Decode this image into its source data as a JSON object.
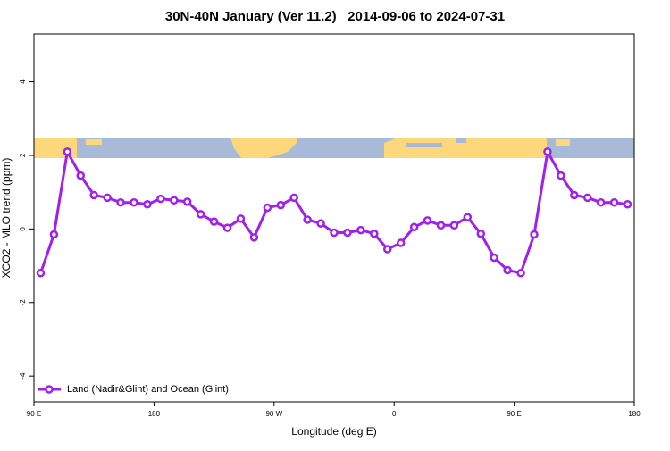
{
  "chart_data": {
    "type": "line",
    "title": "30N-40N January (Ver 11.2)   2014-09-06 to 2024-07-31",
    "x_label": "Longitude (deg E)",
    "y_label": "XCO2 - MLO trend (ppm)",
    "x": [
      95,
      105,
      115,
      125,
      135,
      145,
      155,
      165,
      175,
      185,
      195,
      205,
      215,
      225,
      235,
      245,
      255,
      265,
      275,
      285,
      295,
      305,
      315,
      325,
      335,
      345,
      355,
      365,
      375,
      385,
      395,
      405,
      415,
      425,
      435,
      445,
      455,
      465,
      475,
      485,
      495,
      505,
      515,
      525,
      535
    ],
    "series": [
      {
        "name": "Land (Nadir&Glint) and Ocean (Glint)",
        "color": "#a020f0",
        "values": [
          -1.2,
          -0.15,
          2.1,
          1.45,
          0.92,
          0.85,
          0.72,
          0.72,
          0.67,
          0.82,
          0.78,
          0.74,
          0.4,
          0.2,
          0.03,
          0.28,
          -0.23,
          0.58,
          0.65,
          0.85,
          0.25,
          0.15,
          -0.1,
          -0.1,
          -0.03,
          -0.13,
          -0.55,
          -0.38,
          0.05,
          0.23,
          0.1,
          0.1,
          0.32,
          -0.13,
          -0.78,
          -1.12,
          -1.2,
          -0.15,
          2.1,
          1.45,
          0.92,
          0.85,
          0.72,
          0.72,
          0.67
        ]
      }
    ],
    "xlim": [
      90,
      540
    ],
    "xticks": [
      {
        "value": 90,
        "label": "90 E"
      },
      180,
      {
        "value": 270,
        "label": "90 W"
      },
      {
        "value": 360,
        "label": "0"
      },
      {
        "value": 450,
        "label": "90 E"
      },
      {
        "value": 540,
        "label": "180"
      }
    ],
    "ylim": [
      -4.7,
      5.3
    ],
    "yticks": [
      -4,
      -2,
      0,
      2,
      4
    ],
    "legend": "bottom-left"
  }
}
